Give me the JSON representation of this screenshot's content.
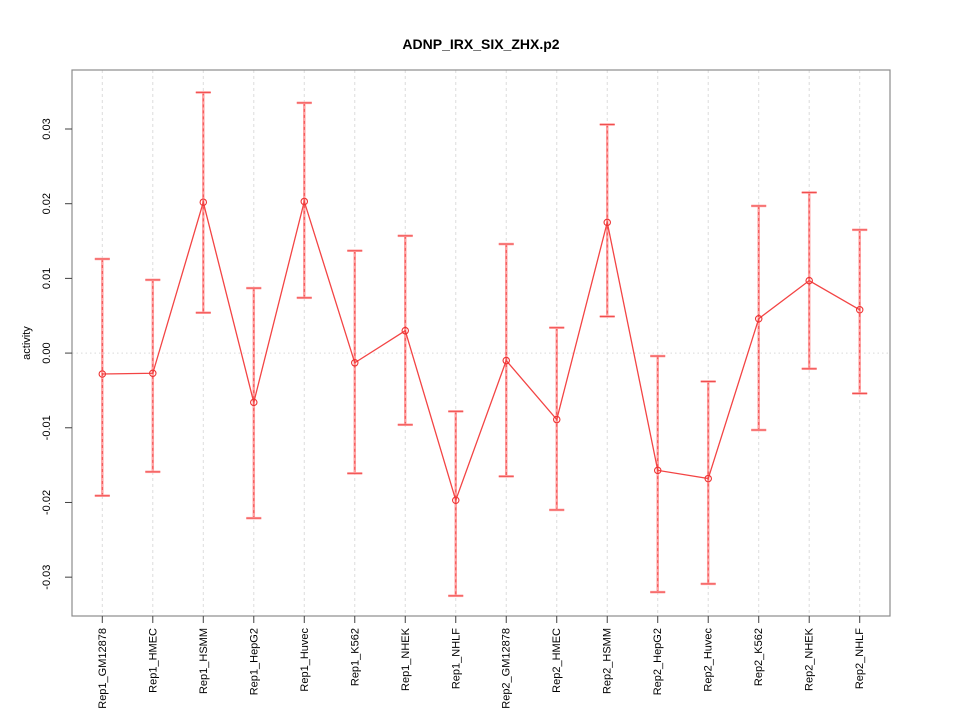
{
  "chart_data": {
    "type": "scatter",
    "title": "ADNP_IRX_SIX_ZHX.p2",
    "xlabel": "",
    "ylabel": "activity",
    "categories": [
      "Rep1_GM12878",
      "Rep1_HMEC",
      "Rep1_HSMM",
      "Rep1_HepG2",
      "Rep1_Huvec",
      "Rep1_K562",
      "Rep1_NHEK",
      "Rep1_NHLF",
      "Rep2_GM12878",
      "Rep2_HMEC",
      "Rep2_HSMM",
      "Rep2_HepG2",
      "Rep2_Huvec",
      "Rep2_K562",
      "Rep2_NHEK",
      "Rep2_NHLF"
    ],
    "series": [
      {
        "name": "activity",
        "values": [
          -0.0028,
          -0.0027,
          0.0202,
          -0.0066,
          0.0203,
          -0.0013,
          0.003,
          -0.0197,
          -0.001,
          -0.0089,
          0.0175,
          -0.0157,
          -0.0168,
          0.0046,
          0.0097,
          0.0058
        ],
        "err_lo": [
          -0.0191,
          -0.0159,
          0.0054,
          -0.0221,
          0.0074,
          -0.0161,
          -0.0096,
          -0.0325,
          -0.0165,
          -0.021,
          0.0049,
          -0.032,
          -0.0309,
          -0.0103,
          -0.0021,
          -0.0054
        ],
        "err_hi": [
          0.0126,
          0.0098,
          0.0349,
          0.0087,
          0.0335,
          0.0137,
          0.0157,
          -0.0078,
          0.0146,
          0.0034,
          0.0306,
          -0.0004,
          -0.0038,
          0.0197,
          0.0215,
          0.0165
        ]
      }
    ],
    "ylim": [
      -0.0352,
      0.0379
    ],
    "yticks": [
      -0.03,
      -0.02,
      -0.01,
      0,
      0.01,
      0.02,
      0.03
    ],
    "grid": "vertical dashed gridline at each category; dotted horizontal line at zero only",
    "legend_position": "none",
    "marker": "open-circle",
    "colors": {
      "line": "#f34444",
      "marker": "#ee3333",
      "error_bar": "#ffa2a2",
      "error_bar_dash": "#ef4545",
      "gridline": "#dcdcdc",
      "zero_line": "#d9d9d9",
      "box_border": "#8c8c8c",
      "tick": "#404040",
      "text": "#000000"
    }
  }
}
